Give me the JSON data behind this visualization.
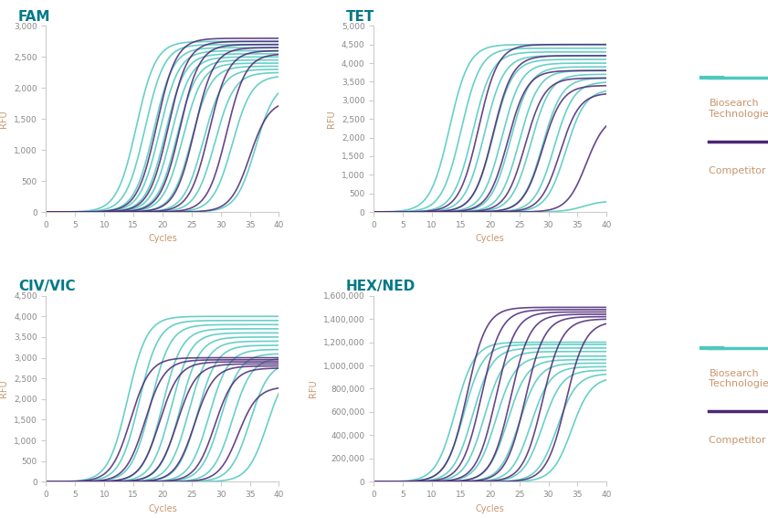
{
  "panels": [
    {
      "title": "FAM",
      "ylim": [
        0,
        3000
      ],
      "yticks": [
        0,
        500,
        1000,
        1500,
        2000,
        2500,
        3000
      ],
      "biosearch_midpoints": [
        15.5,
        17.0,
        18.5,
        19.5,
        20.5,
        21.5,
        22.5,
        23.5,
        25.0,
        27.0,
        29.0,
        32.0,
        36.0
      ],
      "biosearch_maxvals": [
        2750,
        2700,
        2650,
        2600,
        2550,
        2500,
        2450,
        2400,
        2350,
        2300,
        2250,
        2200,
        2100
      ],
      "competitor_midpoints": [
        19.0,
        21.0,
        23.0,
        25.5,
        28.0,
        31.0,
        35.0
      ],
      "competitor_maxvals": [
        2800,
        2750,
        2700,
        2650,
        2600,
        2550,
        1800
      ]
    },
    {
      "title": "TET",
      "ylim": [
        0,
        5000
      ],
      "yticks": [
        0,
        500,
        1000,
        1500,
        2000,
        2500,
        3000,
        3500,
        4000,
        4500,
        5000
      ],
      "biosearch_midpoints": [
        13.0,
        15.0,
        17.0,
        19.0,
        20.5,
        22.0,
        23.5,
        25.0,
        27.0,
        29.0,
        31.0,
        33.0,
        36.0
      ],
      "biosearch_maxvals": [
        4500,
        4400,
        4300,
        4200,
        4100,
        4000,
        3900,
        3800,
        3700,
        3600,
        3500,
        3300,
        300
      ],
      "competitor_midpoints": [
        18.0,
        20.5,
        23.0,
        26.0,
        29.0,
        32.0,
        36.5
      ],
      "competitor_maxvals": [
        4500,
        4200,
        3800,
        3600,
        3400,
        3200,
        2600
      ]
    },
    {
      "title": "CIV/VIC",
      "ylim": [
        0,
        4500
      ],
      "yticks": [
        0,
        500,
        1000,
        1500,
        2000,
        2500,
        3000,
        3500,
        4000,
        4500
      ],
      "biosearch_midpoints": [
        14.0,
        16.0,
        18.0,
        20.0,
        21.5,
        23.0,
        24.5,
        26.0,
        28.0,
        30.0,
        32.0,
        35.0,
        38.0
      ],
      "biosearch_maxvals": [
        4000,
        3900,
        3800,
        3700,
        3600,
        3500,
        3400,
        3300,
        3200,
        3100,
        3000,
        2900,
        2800
      ],
      "competitor_midpoints": [
        14.5,
        17.0,
        19.5,
        22.5,
        25.5,
        29.0,
        33.0
      ],
      "competitor_maxvals": [
        3000,
        2950,
        2900,
        2850,
        2800,
        2750,
        2300
      ]
    },
    {
      "title": "HEX/NED",
      "ylim": [
        0,
        1600000
      ],
      "yticks": [
        0,
        200000,
        400000,
        600000,
        800000,
        1000000,
        1200000,
        1400000,
        1600000
      ],
      "biosearch_midpoints": [
        14.0,
        15.5,
        17.0,
        19.0,
        21.0,
        23.0,
        25.0,
        27.0,
        29.0,
        31.5,
        34.0
      ],
      "biosearch_maxvals": [
        1200000,
        1180000,
        1150000,
        1120000,
        1080000,
        1050000,
        1020000,
        990000,
        960000,
        930000,
        900000
      ],
      "competitor_midpoints": [
        16.0,
        18.5,
        21.0,
        23.5,
        26.0,
        29.0,
        33.0
      ],
      "competitor_maxvals": [
        1500000,
        1480000,
        1460000,
        1440000,
        1420000,
        1400000,
        1380000
      ]
    }
  ],
  "xlim": [
    0,
    40
  ],
  "xticks": [
    0,
    5,
    10,
    15,
    20,
    25,
    30,
    35,
    40
  ],
  "xlabel": "Cycles",
  "ylabel": "RFU",
  "biosearch_color": "#4DC8BE",
  "competitor_color": "#4B2676",
  "title_color": "#007A87",
  "label_color": "#C8956C",
  "line_width": 1.2,
  "sigmoid_k": 0.6,
  "background_color": "#ffffff"
}
